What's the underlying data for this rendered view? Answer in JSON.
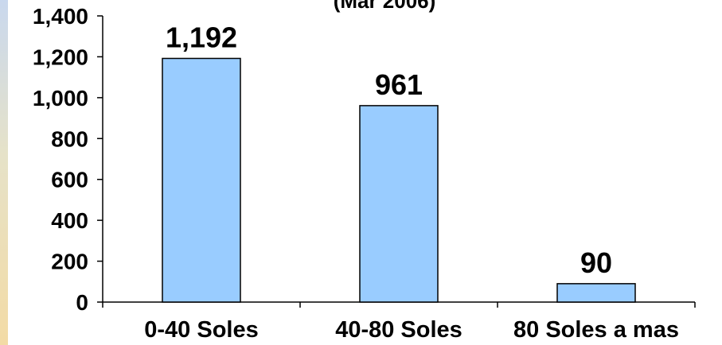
{
  "chart_data": {
    "type": "bar",
    "title": "(Mar 2006)",
    "categories": [
      "0-40 Soles",
      "40-80 Soles",
      "80 Soles a mas"
    ],
    "values": [
      1192,
      961,
      90
    ],
    "value_labels": [
      "1,192",
      "961",
      "90"
    ],
    "yticks": [
      0,
      200,
      400,
      600,
      800,
      1000,
      1200,
      1400
    ],
    "ytick_labels": [
      "0",
      "200",
      "400",
      "600",
      "800",
      "1,000",
      "1,200",
      "1,400"
    ],
    "ylim": [
      0,
      1400
    ],
    "grid": false,
    "legend": "none",
    "bar_color": "#99ccff"
  }
}
